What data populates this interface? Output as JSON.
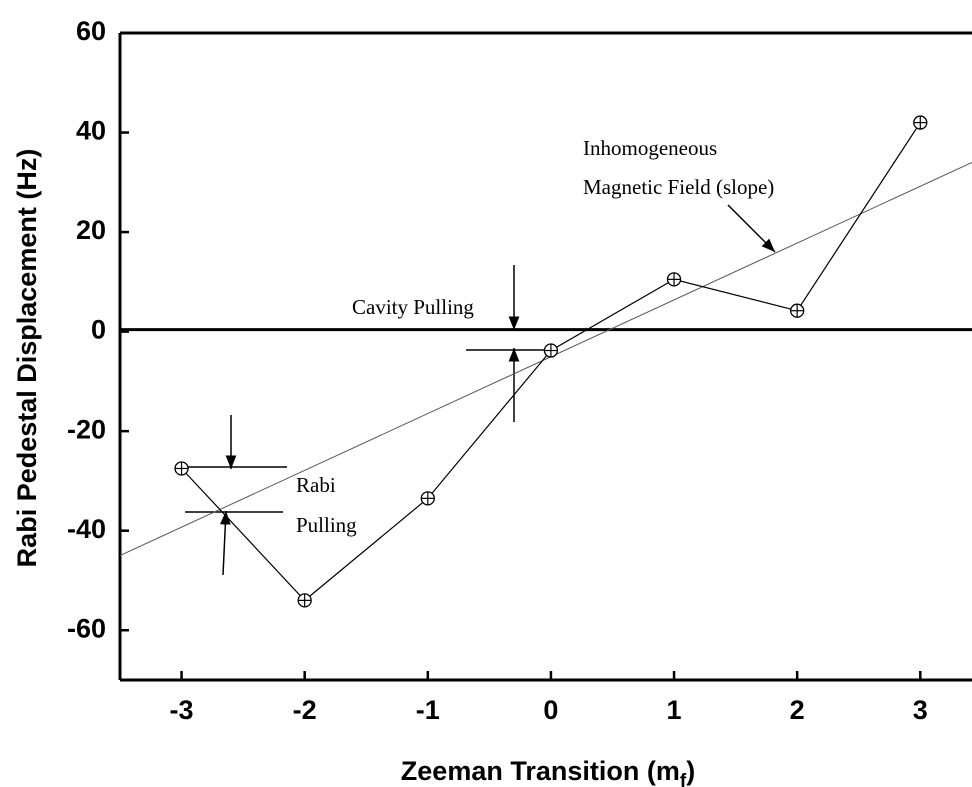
{
  "chart_data": {
    "type": "line",
    "y_label": "Rabi Pedestal Displacement  (Hz)",
    "x_label": {
      "text": "Zeeman Transition (m",
      "sub": "f",
      "end": ")"
    },
    "x": [
      -3,
      -2,
      -1,
      0,
      1,
      2,
      3
    ],
    "series": [
      {
        "color": "#000000",
        "values": [
          -27.5,
          -54,
          -33.5,
          -3.8,
          10.5,
          4.2,
          42
        ]
      }
    ],
    "fit_line": {
      "x": [
        -3.5,
        3.42
      ],
      "values": [
        -45,
        34
      ],
      "color": "#555555"
    },
    "reference_line": {
      "value": 0.4,
      "color": "#000000"
    },
    "xlim": [
      -3.5,
      3.42
    ],
    "ylim": [
      -70,
      60
    ],
    "xticks": [
      -3,
      -2,
      -1,
      0,
      1,
      2,
      3
    ],
    "yticks": [
      -60,
      -40,
      -20,
      0,
      20,
      40,
      60
    ],
    "annotations": [
      "Inhomogeneous",
      "Magnetic Field (slope)",
      "Cavity Pulling",
      "Rabi",
      "Pulling"
    ]
  }
}
